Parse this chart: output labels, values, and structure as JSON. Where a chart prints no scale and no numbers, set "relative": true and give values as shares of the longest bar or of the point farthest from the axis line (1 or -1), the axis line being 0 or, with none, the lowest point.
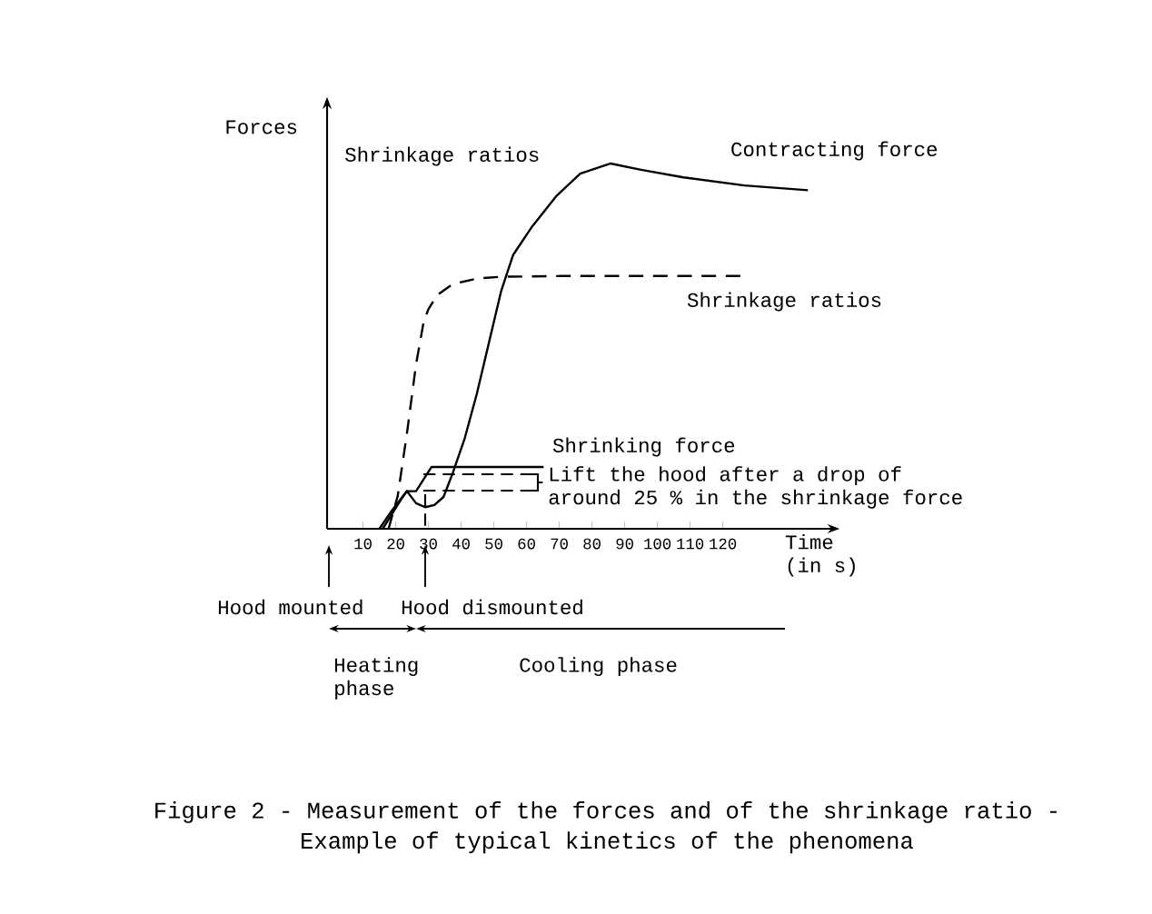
{
  "chart_data": {
    "type": "line",
    "relative": true,
    "title": "Figure 2 - Measurement of the forces and of the shrinkage ratio - Example of typical kinetics of the phenomena",
    "ylabel": "Forces",
    "xlabel": "Time (in s)",
    "xlim": [
      -1,
      152
    ],
    "xticks": [
      10,
      20,
      30,
      40,
      50,
      60,
      70,
      80,
      90,
      100,
      110,
      120
    ],
    "legend": false,
    "grid": false,
    "marker": "none",
    "series": [
      {
        "name": "Contracting force",
        "color": "#000000",
        "line_style": "solid",
        "x": [
          16,
          18.8,
          21.6,
          23.4,
          26.2,
          29,
          31.8,
          34.6,
          37.4,
          41.1,
          44.8,
          48.5,
          52.2,
          55.9,
          61.5,
          69,
          76.4,
          85.7,
          95,
          108,
          126.6,
          146
        ],
        "values": [
          0,
          0.04,
          0.08,
          0.103,
          0.07,
          0.059,
          0.065,
          0.087,
          0.152,
          0.248,
          0.37,
          0.51,
          0.65,
          0.75,
          0.825,
          0.91,
          0.972,
          1.0,
          0.983,
          0.962,
          0.94,
          0.927
        ]
      },
      {
        "name": "Shrinkage ratios",
        "color": "#000000",
        "line_style": "dashed",
        "x": [
          17.8,
          20.6,
          23.4,
          26.2,
          28.4,
          29.9,
          32.7,
          37.4,
          44.8,
          52.2,
          70.8,
          126.6
        ],
        "values": [
          0,
          0.09,
          0.26,
          0.45,
          0.56,
          0.6,
          0.64,
          0.67,
          0.685,
          0.69,
          0.692,
          0.692
        ]
      },
      {
        "name": "Shrinking force",
        "color": "#000000",
        "line_style": "solid",
        "x": [
          15,
          18.8,
          23.4,
          26.2,
          30.9,
          65.2
        ],
        "values": [
          0,
          0.05,
          0.103,
          0.103,
          0.169,
          0.169
        ]
      }
    ],
    "annotations": [
      "Shrinkage ratios",
      "Lift the hood after a drop of around 25 % in the shrinkage force",
      "Hood mounted",
      "Hood dismounted",
      "Heating phase",
      "Cooling phase"
    ]
  }
}
